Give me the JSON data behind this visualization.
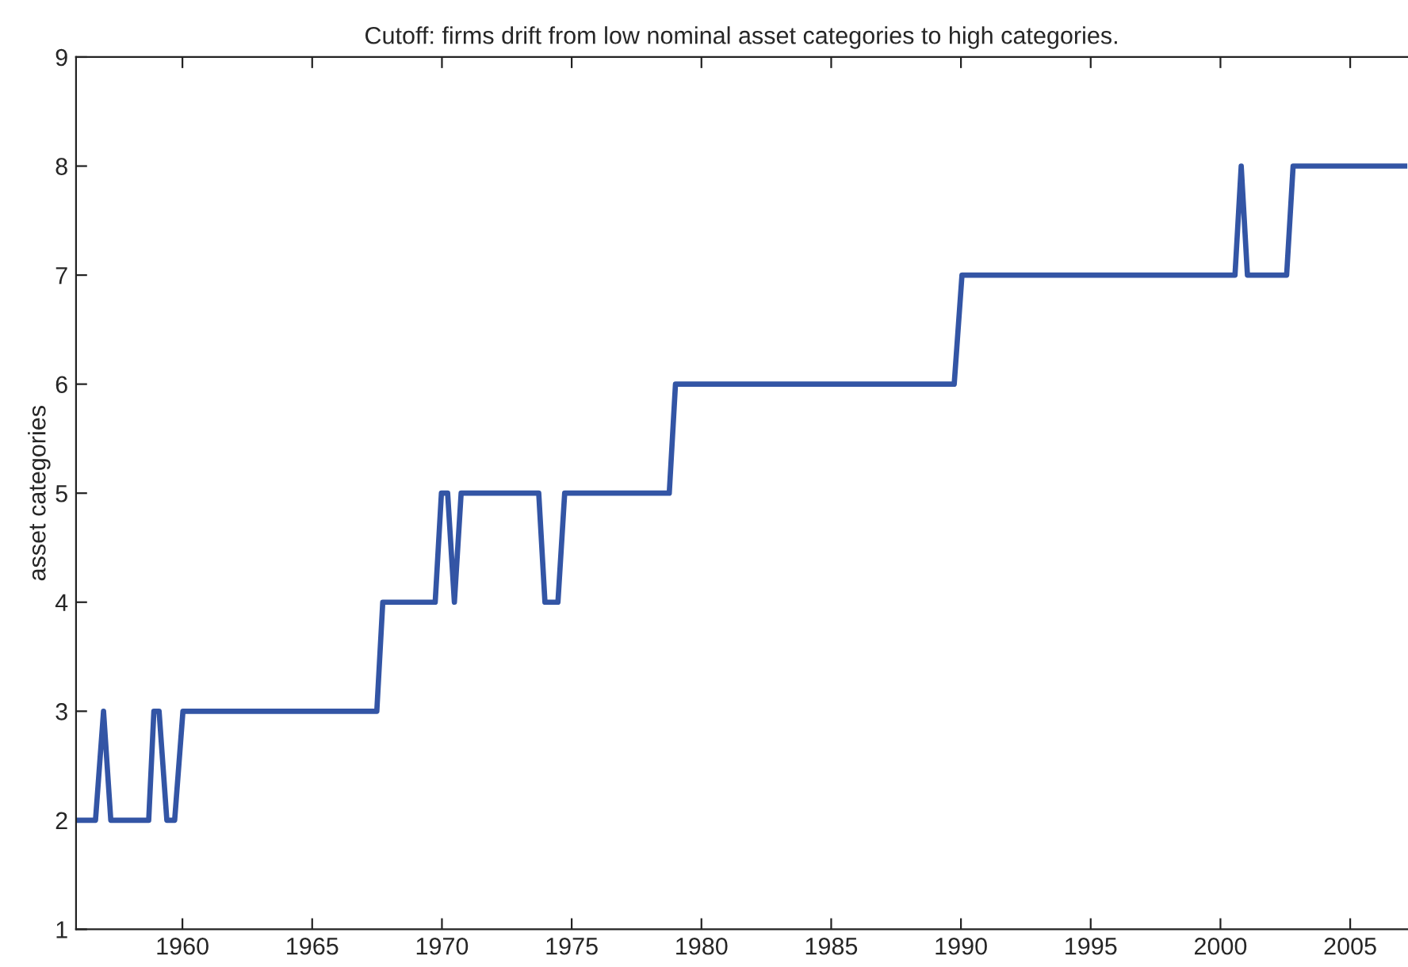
{
  "chart_data": {
    "type": "line",
    "title": "Cutoff: firms drift from low nominal asset categories to high categories.",
    "ylabel": "asset categories",
    "x": [
      1955.9,
      1956.65,
      1956.96,
      1957.24,
      1958.7,
      1958.9,
      1959.1,
      1959.4,
      1959.7,
      1960.02,
      1967.49,
      1967.72,
      1969.74,
      1969.98,
      1970.22,
      1970.48,
      1970.74,
      1973.73,
      1973.97,
      1974.47,
      1974.73,
      1978.76,
      1979.0,
      1989.74,
      1990.04,
      2000.56,
      2000.8,
      2001.04,
      2002.55,
      2002.8,
      2007.2
    ],
    "series": [
      {
        "color": "#3355a5",
        "values": [
          2,
          2,
          3,
          2,
          2,
          3,
          3,
          2,
          2,
          3,
          3,
          4,
          4,
          5,
          5,
          4,
          5,
          5,
          4,
          4,
          5,
          5,
          6,
          6,
          7,
          7,
          8,
          7,
          7,
          8,
          8
        ]
      }
    ],
    "xlim": [
      1955.9,
      2007.2
    ],
    "xticks": [
      1960,
      1965,
      1970,
      1975,
      1980,
      1985,
      1990,
      1995,
      2000,
      2005
    ],
    "ylim": [
      1,
      9
    ],
    "yticks": [
      1,
      2,
      3,
      4,
      5,
      6,
      7,
      8,
      9
    ],
    "grid": false,
    "legend": false,
    "marker": "none",
    "line_style": "solid"
  }
}
